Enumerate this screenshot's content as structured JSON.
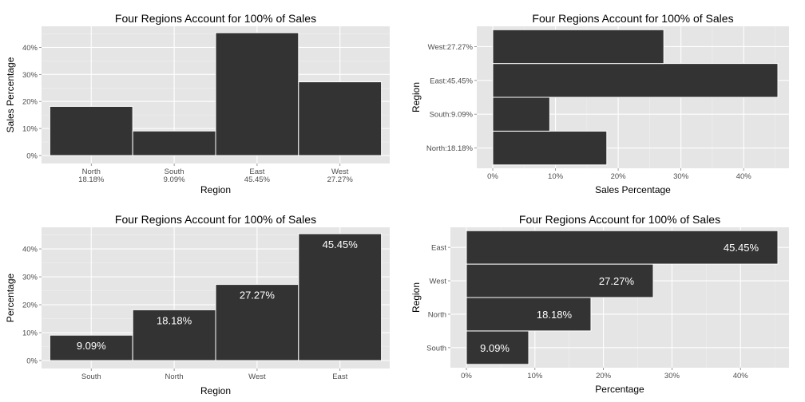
{
  "colors": {
    "panel": "#e5e5e5",
    "grid_major": "#ffffff",
    "grid_minor": "#f0f0f0",
    "bar": "#333333",
    "bar_edge": "#ffffff",
    "tick_text": "#4d4d4d"
  },
  "chart_data": [
    {
      "type": "bar",
      "orientation": "vertical",
      "title": "Four Regions Account for 100% of Sales",
      "xlabel": "Region",
      "ylabel": "Sales Percentage",
      "categories": [
        "North\n18.18%",
        "South\n9.09%",
        "East\n45.45%",
        "West\n27.27%"
      ],
      "values": [
        18.18,
        9.09,
        45.45,
        27.27
      ],
      "ylim": [
        0,
        45.45
      ],
      "yticks": [
        "0%",
        "10%",
        "20%",
        "30%",
        "40%"
      ],
      "data_labels": []
    },
    {
      "type": "bar",
      "orientation": "horizontal",
      "title": "Four Regions Account for 100% of Sales",
      "xlabel": "Sales Percentage",
      "ylabel": "Region",
      "categories": [
        "North:18.18%",
        "South:9.09%",
        "East:45.45%",
        "West:27.27%"
      ],
      "values": [
        18.18,
        9.09,
        45.45,
        27.27
      ],
      "ylim": [
        0,
        45.45
      ],
      "yticks": [
        "0%",
        "10%",
        "20%",
        "30%",
        "40%"
      ],
      "data_labels": []
    },
    {
      "type": "bar",
      "orientation": "vertical",
      "title": "Four Regions Account for 100% of Sales",
      "xlabel": "Region",
      "ylabel": "Percentage",
      "categories": [
        "South",
        "North",
        "West",
        "East"
      ],
      "values": [
        9.09,
        18.18,
        27.27,
        45.45
      ],
      "ylim": [
        0,
        45.45
      ],
      "yticks": [
        "0%",
        "10%",
        "20%",
        "30%",
        "40%"
      ],
      "data_labels": [
        "9.09%",
        "18.18%",
        "27.27%",
        "45.45%"
      ]
    },
    {
      "type": "bar",
      "orientation": "horizontal",
      "title": "Four Regions Account for 100% of Sales",
      "xlabel": "Percentage",
      "ylabel": "Region",
      "categories": [
        "South",
        "North",
        "West",
        "East"
      ],
      "values": [
        9.09,
        18.18,
        27.27,
        45.45
      ],
      "ylim": [
        0,
        45.45
      ],
      "yticks": [
        "0%",
        "10%",
        "20%",
        "30%",
        "40%"
      ],
      "data_labels": [
        "9.09%",
        "18.18%",
        "27.27%",
        "45.45%"
      ]
    }
  ]
}
